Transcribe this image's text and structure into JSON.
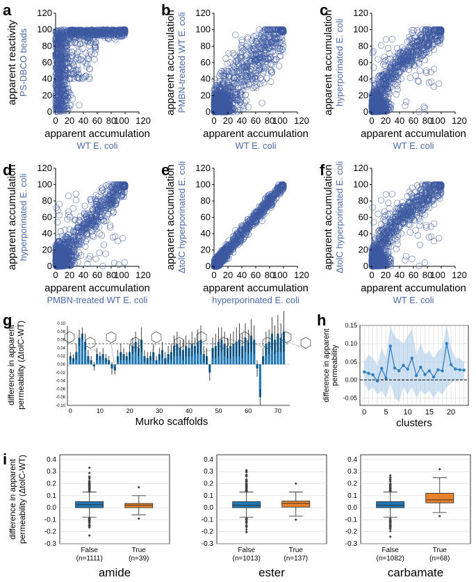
{
  "colors": {
    "scatter": "#3d5aa0",
    "accent": "#4a6aa8",
    "bar": "#1f77b4",
    "line": "#2f7fc1",
    "band": "#aecde9",
    "orange": "#e8822a",
    "text": "#000000"
  },
  "panel_labels": {
    "a": "a",
    "b": "b",
    "c": "c",
    "d": "d",
    "e": "e",
    "f": "f",
    "g": "g",
    "h": "h",
    "i": "i"
  },
  "common": {
    "ticks": [
      "0",
      "20",
      "40",
      "60",
      "80",
      "100",
      "120"
    ],
    "apparent_accumulation": "apparent accumulation",
    "apparent_reactivity": "apparent reactivity"
  },
  "scatter_panels": {
    "a": {
      "ylabel_main": "apparent reactivity",
      "ylabel_sub": "PS-DBCO beads",
      "xlabel_main": "apparent accumulation",
      "xlabel_sub": "WT E. coli"
    },
    "b": {
      "ylabel_main": "apparent accumulation",
      "ylabel_sub": "PMBN-treated WT E. coli",
      "xlabel_main": "apparent accumulation",
      "xlabel_sub": "WT E. coli"
    },
    "c": {
      "ylabel_main": "apparent accumulation",
      "ylabel_sub": "hyperporinated E. coli",
      "xlabel_main": "apparent accumulation",
      "xlabel_sub": "WT E. coli"
    },
    "d": {
      "ylabel_main": "apparent accumulation",
      "ylabel_sub": "hyperporinated E. coli",
      "xlabel_main": "apparent accumulation",
      "xlabel_sub": "PMBN-treated WT E. coli"
    },
    "e": {
      "ylabel_main": "apparent accumulation",
      "ylabel_sub": "ΔtolC hyperporinated E. coli",
      "xlabel_main": "apparent accumulation",
      "xlabel_sub": "hyperporinated E. coli"
    },
    "f": {
      "ylabel_main": "apparent accumulation",
      "ylabel_sub": "ΔtolC hyperporinated E. coli",
      "xlabel_main": "apparent accumulation",
      "xlabel_sub": "WT E. coli"
    }
  },
  "panel_g": {
    "ylabel_line1": "difference in apparent",
    "ylabel_line2": "permeability (ΔtolC-WT)",
    "xlabel": "Murko scaffolds",
    "yticks": [
      "0.10",
      "0.08",
      "0.06",
      "0.04",
      "0.02",
      "0.00",
      "-0.02",
      "-0.04",
      "-0.06",
      "-0.08",
      "-0.10"
    ],
    "xticks": [
      "0",
      "10",
      "20",
      "30",
      "40",
      "50",
      "60",
      "70"
    ]
  },
  "panel_h": {
    "ylabel_line1": "difference in apparent",
    "ylabel_line2": "permeability",
    "xlabel": "clusters",
    "yticks": [
      "0.15",
      "0.10",
      "0.05",
      "0.00",
      "-0.05"
    ],
    "xticks": [
      "0",
      "5",
      "10",
      "15",
      "20"
    ]
  },
  "panel_i": {
    "ylabel_line1": "difference in apparent",
    "ylabel_line2": "permeability (ΔtolC-WT)",
    "yticks": [
      "0.4",
      "0.3",
      "0.2",
      "0.1",
      "0.0",
      "-0.1",
      "-0.2",
      "-0.3"
    ],
    "groups": [
      {
        "title": "amide",
        "false_label": "False",
        "false_n": "(n=1111)",
        "true_label": "True",
        "true_n": "(n=39)"
      },
      {
        "title": "ester",
        "false_label": "False",
        "false_n": "(n=1013)",
        "true_label": "True",
        "true_n": "(n=137)"
      },
      {
        "title": "carbamate",
        "false_label": "False",
        "false_n": "(n=1082)",
        "true_label": "True",
        "true_n": "(n=68)"
      }
    ]
  },
  "chart_data": [
    {
      "panel": "a",
      "type": "scatter",
      "xlim": [
        0,
        120
      ],
      "ylim": [
        0,
        120
      ],
      "pattern": "saturating, many points near y=100 for x>30, dense cluster at low x with full y spread",
      "n_points": 1150
    },
    {
      "panel": "b",
      "type": "scatter",
      "xlim": [
        0,
        120
      ],
      "ylim": [
        0,
        120
      ],
      "pattern": "broad positive correlation, dense at low values",
      "n_points": 1150
    },
    {
      "panel": "c",
      "type": "scatter",
      "xlim": [
        0,
        120
      ],
      "ylim": [
        0,
        120
      ],
      "pattern": "curved positive correlation toward (100,100)",
      "n_points": 1150
    },
    {
      "panel": "d",
      "type": "scatter",
      "xlim": [
        0,
        120
      ],
      "ylim": [
        0,
        120
      ],
      "pattern": "positive correlation with scatter above diagonal",
      "n_points": 1150
    },
    {
      "panel": "e",
      "type": "scatter",
      "xlim": [
        0,
        120
      ],
      "ylim": [
        0,
        120
      ],
      "pattern": "tight diagonal y≈x",
      "n_points": 1150
    },
    {
      "panel": "f",
      "type": "scatter",
      "xlim": [
        0,
        120
      ],
      "ylim": [
        0,
        120
      ],
      "pattern": "curved positive correlation toward (100,100)",
      "n_points": 1150
    },
    {
      "panel": "g",
      "type": "bar",
      "xlim": [
        -1,
        74
      ],
      "ylim": [
        -0.1,
        0.1
      ],
      "threshold": 0.05,
      "values": [
        0.02,
        0.015,
        0.03,
        0.065,
        0.075,
        0.055,
        0.02,
        0.01,
        -0.005,
        0.025,
        0.02,
        0.025,
        0.015,
        0.01,
        -0.01,
        -0.015,
        0.02,
        0.03,
        0.025,
        0.02,
        0.03,
        0.045,
        0.055,
        0.04,
        0.06,
        0.02,
        0.015,
        0.02,
        0.03,
        0.01,
        0.025,
        0.035,
        0.015,
        0.025,
        0.03,
        0.045,
        0.05,
        0.04,
        0.035,
        0.045,
        0.04,
        0.05,
        0.045,
        0.055,
        0.06,
        0.025,
        0.02,
        -0.02,
        0.04,
        0.045,
        0.055,
        0.06,
        0.05,
        0.04,
        0.045,
        0.05,
        0.055,
        0.06,
        0.045,
        0.065,
        0.055,
        0.07,
        0.06,
        -0.01,
        -0.08,
        0.02,
        0.05,
        0.055,
        0.075,
        0.06,
        0.075,
        0.065,
        0.08
      ],
      "errors": [
        0.01,
        0.01,
        0.02,
        0.02,
        0.015,
        0.02,
        0.015,
        0.01,
        0.01,
        0.015,
        0.01,
        0.015,
        0.01,
        0.01,
        0.015,
        0.01,
        0.015,
        0.02,
        0.015,
        0.01,
        0.02,
        0.02,
        0.025,
        0.02,
        0.03,
        0.015,
        0.015,
        0.01,
        0.02,
        0.01,
        0.015,
        0.02,
        0.015,
        0.02,
        0.02,
        0.025,
        0.03,
        0.02,
        0.025,
        0.025,
        0.02,
        0.03,
        0.02,
        0.03,
        0.035,
        0.02,
        0.02,
        0.02,
        0.025,
        0.03,
        0.035,
        0.03,
        0.03,
        0.025,
        0.03,
        0.03,
        0.035,
        0.04,
        0.03,
        0.035,
        0.03,
        0.04,
        0.035,
        0.02,
        0.02,
        0.02,
        0.03,
        0.03,
        0.04,
        0.035,
        0.045,
        0.035,
        0.05
      ]
    },
    {
      "panel": "h",
      "type": "line",
      "xlim": [
        -1,
        24
      ],
      "ylim": [
        -0.07,
        0.15
      ],
      "x": [
        0,
        1,
        2,
        3,
        4,
        5,
        6,
        7,
        8,
        9,
        10,
        11,
        12,
        13,
        14,
        15,
        16,
        17,
        18,
        19,
        20,
        21,
        22,
        23
      ],
      "values": [
        0.022,
        0.018,
        0.014,
        -0.003,
        0.032,
        0.005,
        0.093,
        0.033,
        0.025,
        0.04,
        0.03,
        0.06,
        0.012,
        0.035,
        0.015,
        0.025,
        0.008,
        0.028,
        0.025,
        0.1,
        0.042,
        0.03,
        0.028,
        0.027
      ],
      "ci_low": [
        -0.01,
        -0.03,
        -0.02,
        -0.04,
        -0.03,
        -0.05,
        -0.01,
        -0.05,
        -0.06,
        -0.02,
        -0.04,
        -0.02,
        -0.05,
        -0.03,
        -0.04,
        -0.03,
        -0.05,
        -0.03,
        -0.04,
        -0.02,
        -0.01,
        0.0,
        0.0,
        0.0
      ],
      "ci_high": [
        0.05,
        0.07,
        0.06,
        0.04,
        0.09,
        0.06,
        0.15,
        0.12,
        0.11,
        0.1,
        0.12,
        0.14,
        0.07,
        0.1,
        0.07,
        0.08,
        0.06,
        0.08,
        0.09,
        0.15,
        0.09,
        0.06,
        0.06,
        0.05
      ],
      "baseline": 0.0
    },
    {
      "panel": "i",
      "type": "box",
      "ylim": [
        -0.3,
        0.44
      ],
      "groups": [
        {
          "title": "amide",
          "boxes": [
            {
              "label": "False",
              "n": 1111,
              "q1": 0.0,
              "median": 0.025,
              "q3": 0.05,
              "whisker_low": -0.08,
              "whisker_high": 0.13
            },
            {
              "label": "True",
              "n": 39,
              "q1": 0.0,
              "median": 0.02,
              "q3": 0.035,
              "whisker_low": -0.06,
              "whisker_high": 0.1
            }
          ]
        },
        {
          "title": "ester",
          "boxes": [
            {
              "label": "False",
              "n": 1013,
              "q1": 0.0,
              "median": 0.02,
              "q3": 0.05,
              "whisker_low": -0.08,
              "whisker_high": 0.13
            },
            {
              "label": "True",
              "n": 137,
              "q1": 0.005,
              "median": 0.035,
              "q3": 0.055,
              "whisker_low": -0.07,
              "whisker_high": 0.13
            }
          ]
        },
        {
          "title": "carbamate",
          "boxes": [
            {
              "label": "False",
              "n": 1082,
              "q1": 0.0,
              "median": 0.02,
              "q3": 0.05,
              "whisker_low": -0.08,
              "whisker_high": 0.13
            },
            {
              "label": "True",
              "n": 68,
              "q1": 0.04,
              "median": 0.065,
              "q3": 0.12,
              "whisker_low": -0.04,
              "whisker_high": 0.25
            }
          ]
        }
      ]
    }
  ]
}
